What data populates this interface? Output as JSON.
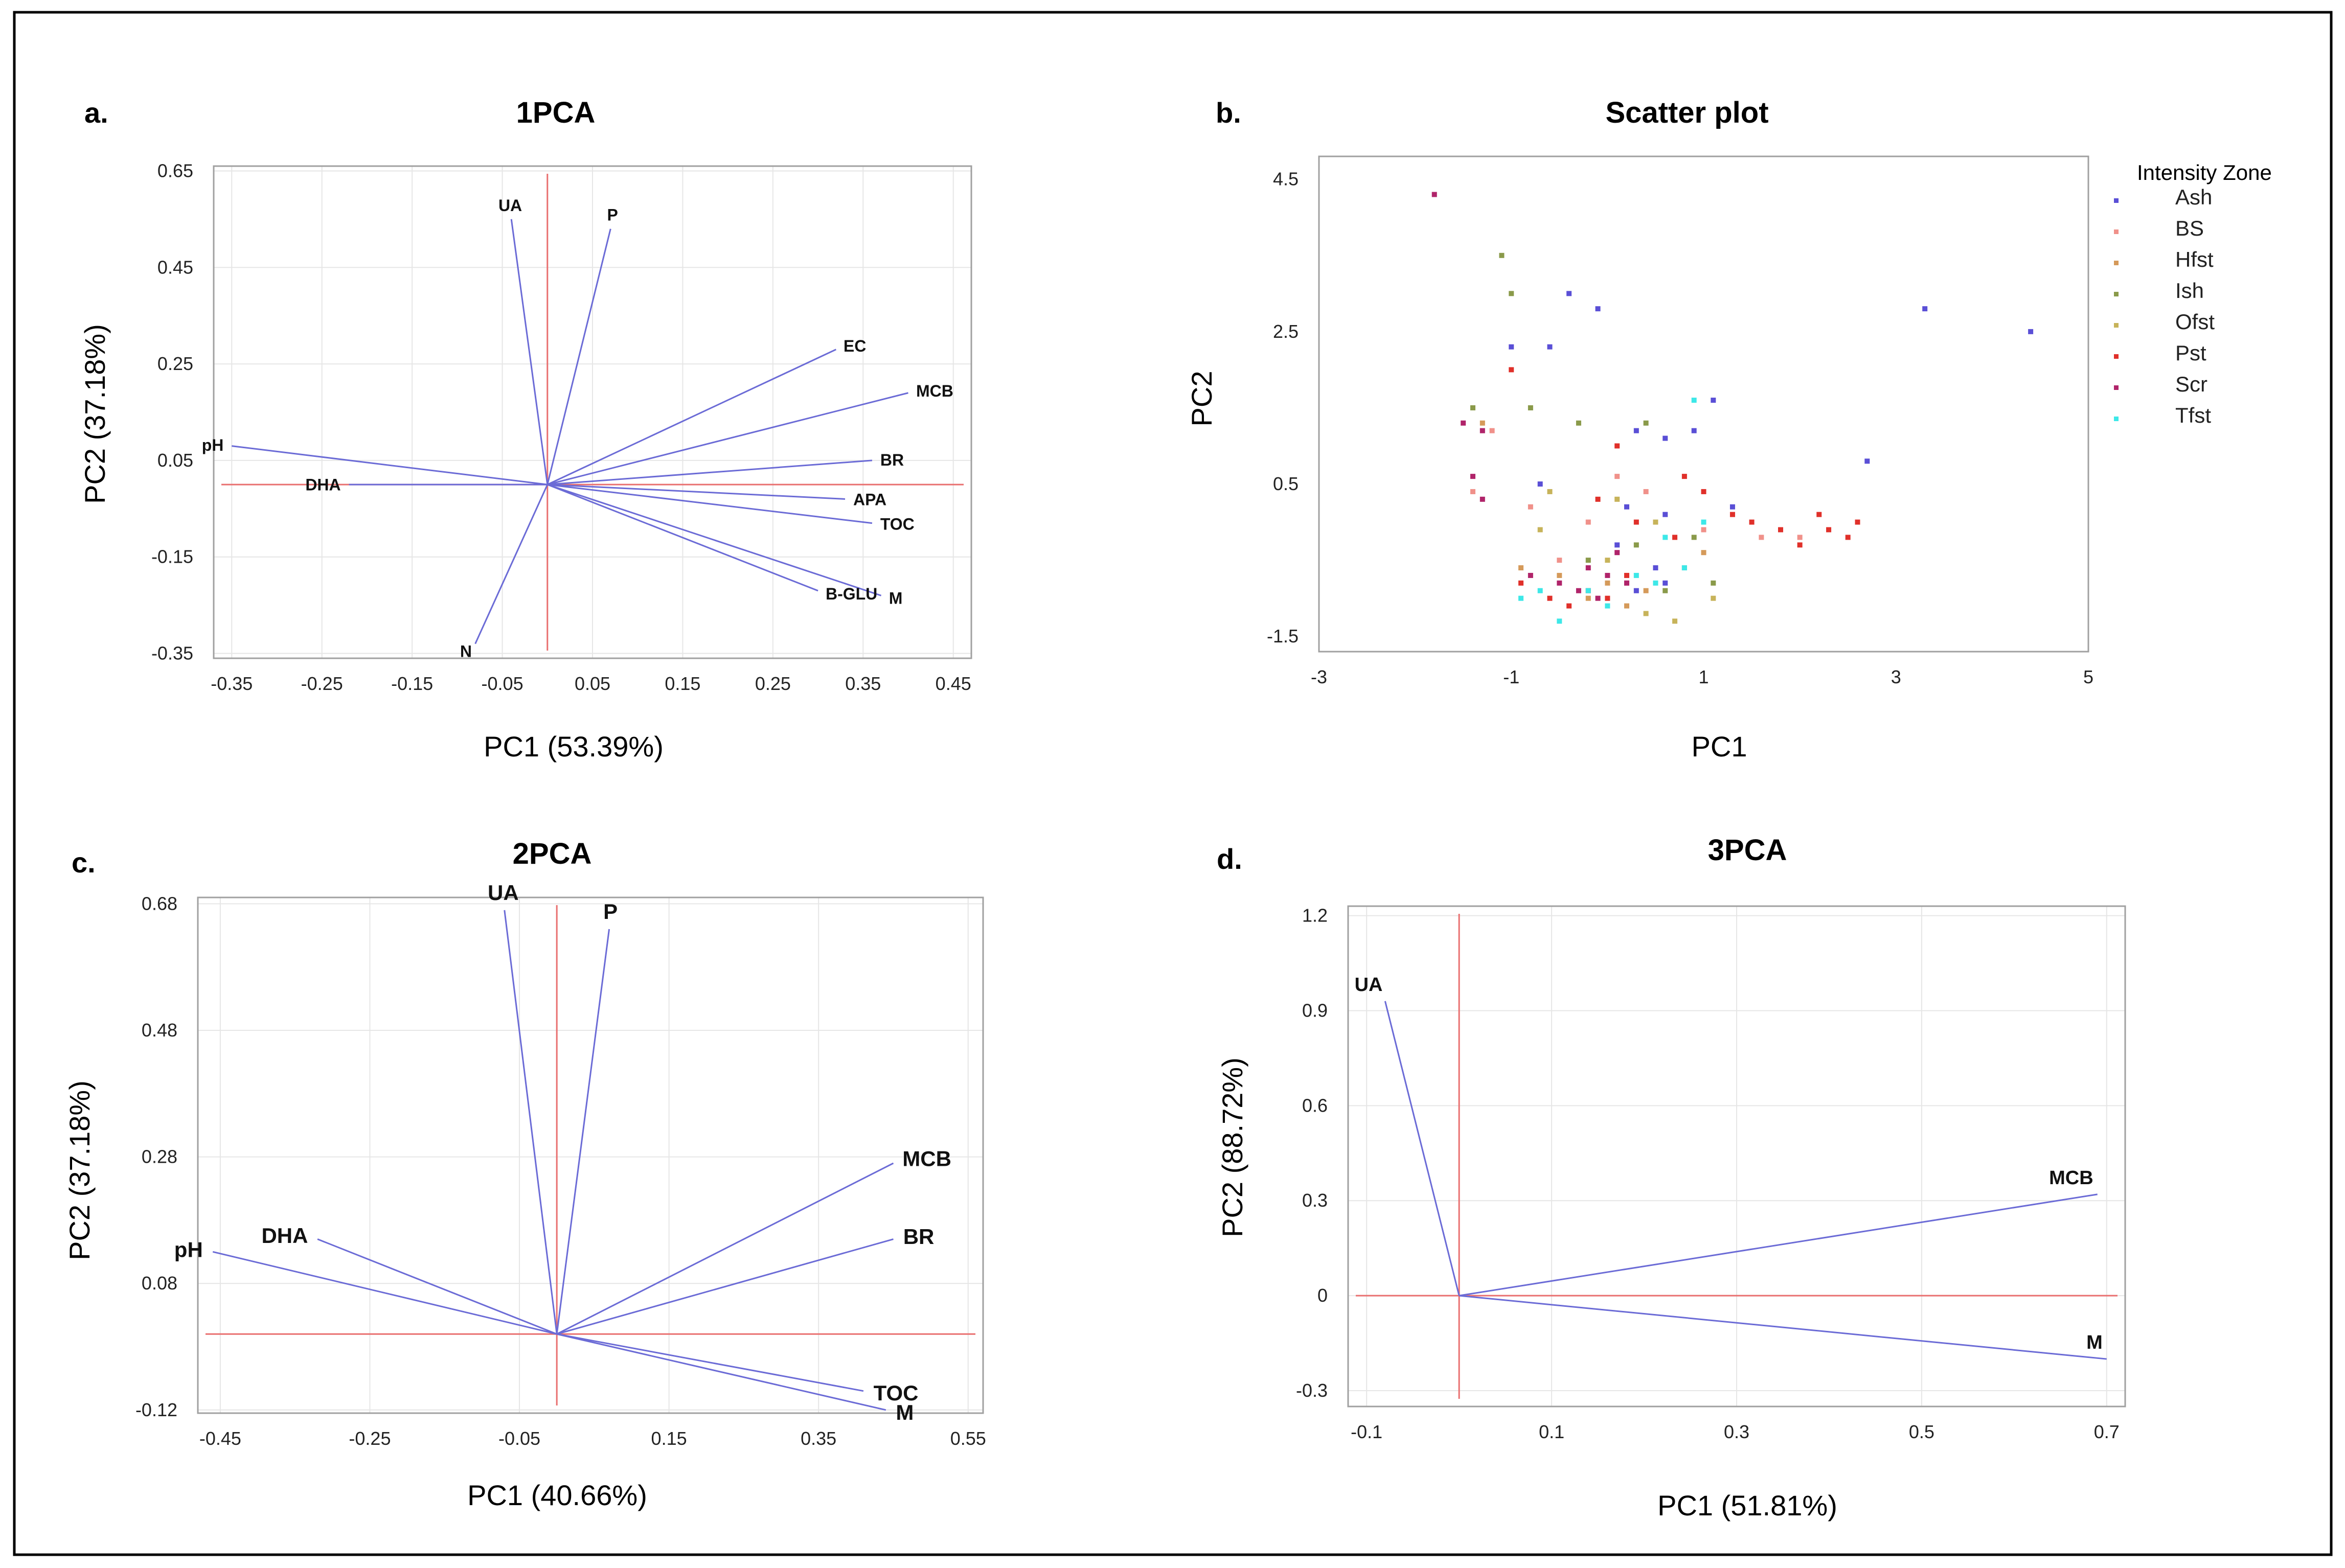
{
  "figure": {
    "colors": {
      "axis_line": "#e97070",
      "vector": "#6b6bd6",
      "frame": "#000000",
      "plot_border": "#a0a0a0",
      "grid": "#e6e6e6"
    }
  },
  "chart_data": [
    {
      "id": "a",
      "type": "biplot",
      "panel_label": "a.",
      "title": "1PCA",
      "xlabel": "PC1 (53.39%)",
      "ylabel": "PC2 (37.18%)",
      "xlim": [
        -0.37,
        0.47
      ],
      "ylim": [
        -0.36,
        0.66
      ],
      "xticks": [
        -0.35,
        -0.25,
        -0.15,
        -0.05,
        0.05,
        0.15,
        0.25,
        0.35,
        0.45
      ],
      "xtick_labels": [
        "-0.35",
        "-0.25",
        "-0.15",
        "-0.05",
        "0.05",
        "0.15",
        "0.25",
        "0.35",
        "0.45"
      ],
      "yticks": [
        -0.35,
        -0.15,
        0.05,
        0.25,
        0.45,
        0.65
      ],
      "ytick_labels": [
        "-0.35",
        "-0.15",
        "0.05",
        "0.25",
        "0.45",
        "0.65"
      ],
      "reference_lines": {
        "x": 0.0,
        "y": 0.0
      },
      "vectors": [
        {
          "label": "UA",
          "x": -0.04,
          "y": 0.55
        },
        {
          "label": "P",
          "x": 0.07,
          "y": 0.53
        },
        {
          "label": "EC",
          "x": 0.32,
          "y": 0.28
        },
        {
          "label": "MCB",
          "x": 0.4,
          "y": 0.19
        },
        {
          "label": "BR",
          "x": 0.36,
          "y": 0.05
        },
        {
          "label": "APA",
          "x": 0.33,
          "y": -0.03
        },
        {
          "label": "TOC",
          "x": 0.36,
          "y": -0.08
        },
        {
          "label": "M",
          "x": 0.37,
          "y": -0.23
        },
        {
          "label": "B-GLU",
          "x": 0.3,
          "y": -0.22
        },
        {
          "label": "N",
          "x": -0.08,
          "y": -0.33
        },
        {
          "label": "DHA",
          "x": -0.22,
          "y": 0.0
        },
        {
          "label": "pH",
          "x": -0.35,
          "y": 0.08
        }
      ]
    },
    {
      "id": "b",
      "type": "scatter",
      "panel_label": "b.",
      "title": "Scatter plot",
      "xlabel": "PC1",
      "ylabel": "PC2",
      "xlim": [
        -3,
        5
      ],
      "ylim": [
        -1.7,
        4.8
      ],
      "xticks": [
        -3,
        -1,
        1,
        3,
        5
      ],
      "xtick_labels": [
        "-3",
        "-1",
        "1",
        "3",
        "5"
      ],
      "yticks": [
        -1.5,
        0.5,
        2.5,
        4.5
      ],
      "ytick_labels": [
        "-1.5",
        "0.5",
        "2.5",
        "4.5"
      ],
      "legend_title": "Intensity Zone",
      "legend_position": "right",
      "series": [
        {
          "name": "Ash",
          "color": "#5a4fd6",
          "points": [
            [
              -0.4,
              3.0
            ],
            [
              -0.1,
              2.8
            ],
            [
              3.3,
              2.8
            ],
            [
              4.4,
              2.5
            ],
            [
              -1.0,
              2.3
            ],
            [
              -0.6,
              2.3
            ],
            [
              0.3,
              1.2
            ],
            [
              0.6,
              1.1
            ],
            [
              0.9,
              1.2
            ],
            [
              1.1,
              1.6
            ],
            [
              2.7,
              0.8
            ],
            [
              -0.7,
              0.5
            ],
            [
              0.2,
              0.2
            ],
            [
              0.6,
              0.1
            ],
            [
              1.3,
              0.2
            ],
            [
              0.1,
              -0.3
            ],
            [
              0.5,
              -0.6
            ],
            [
              0.6,
              -0.8
            ],
            [
              0.3,
              -0.9
            ]
          ]
        },
        {
          "name": "BS",
          "color": "#f0918a",
          "points": [
            [
              -1.2,
              1.2
            ],
            [
              -1.4,
              0.4
            ],
            [
              -0.8,
              0.2
            ],
            [
              -0.2,
              0.0
            ],
            [
              0.1,
              0.6
            ],
            [
              0.4,
              0.4
            ],
            [
              1.0,
              -0.1
            ],
            [
              1.6,
              -0.2
            ],
            [
              2.0,
              -0.2
            ],
            [
              -0.5,
              -0.5
            ],
            [
              0.2,
              -0.8
            ]
          ]
        },
        {
          "name": "Hfst",
          "color": "#d59a5a",
          "points": [
            [
              -1.3,
              1.3
            ],
            [
              -0.9,
              -0.6
            ],
            [
              -0.5,
              -0.7
            ],
            [
              0.0,
              -0.8
            ],
            [
              0.4,
              -0.9
            ],
            [
              0.8,
              -0.6
            ],
            [
              1.0,
              -0.4
            ],
            [
              0.2,
              -1.1
            ],
            [
              -0.2,
              -1.0
            ]
          ]
        },
        {
          "name": "Ish",
          "color": "#8a9a4a",
          "points": [
            [
              -1.1,
              3.5
            ],
            [
              -1.0,
              3.0
            ],
            [
              -1.4,
              1.5
            ],
            [
              -0.8,
              1.5
            ],
            [
              -0.3,
              1.3
            ],
            [
              0.4,
              1.3
            ],
            [
              0.9,
              -0.2
            ],
            [
              0.3,
              -0.3
            ],
            [
              -0.2,
              -0.5
            ],
            [
              0.6,
              -0.9
            ],
            [
              1.1,
              -0.8
            ]
          ]
        },
        {
          "name": "Ofst",
          "color": "#c7b35a",
          "points": [
            [
              -0.6,
              0.4
            ],
            [
              0.1,
              0.3
            ],
            [
              0.5,
              0.0
            ],
            [
              0.7,
              -1.3
            ],
            [
              0.4,
              -1.2
            ],
            [
              1.1,
              -1.0
            ],
            [
              -0.7,
              -0.1
            ],
            [
              0.0,
              -0.5
            ]
          ]
        },
        {
          "name": "Pst",
          "color": "#e0302a",
          "points": [
            [
              -1.0,
              2.0
            ],
            [
              0.1,
              1.0
            ],
            [
              0.8,
              0.6
            ],
            [
              1.0,
              0.4
            ],
            [
              1.3,
              0.1
            ],
            [
              1.5,
              0.0
            ],
            [
              1.8,
              -0.1
            ],
            [
              2.0,
              -0.3
            ],
            [
              2.2,
              0.1
            ],
            [
              2.5,
              -0.2
            ],
            [
              2.6,
              0.0
            ],
            [
              2.3,
              -0.1
            ],
            [
              -0.1,
              0.3
            ],
            [
              0.3,
              0.0
            ],
            [
              0.7,
              -0.2
            ],
            [
              -0.9,
              -0.8
            ],
            [
              -0.6,
              -1.0
            ],
            [
              -0.4,
              -1.1
            ],
            [
              -0.2,
              -0.9
            ],
            [
              0.0,
              -1.0
            ],
            [
              0.2,
              -0.7
            ]
          ]
        },
        {
          "name": "Scr",
          "color": "#b0246a",
          "points": [
            [
              -1.8,
              4.3
            ],
            [
              -1.5,
              1.3
            ],
            [
              -1.3,
              1.2
            ],
            [
              -1.4,
              0.6
            ],
            [
              -1.3,
              0.3
            ],
            [
              -0.8,
              -0.7
            ],
            [
              -0.5,
              -0.8
            ],
            [
              -0.3,
              -0.9
            ],
            [
              -0.1,
              -1.0
            ],
            [
              0.0,
              -0.7
            ],
            [
              0.2,
              -0.8
            ],
            [
              -0.2,
              -0.6
            ],
            [
              0.1,
              -0.4
            ]
          ]
        },
        {
          "name": "Tfst",
          "color": "#3de8e8",
          "points": [
            [
              0.9,
              1.6
            ],
            [
              -0.5,
              -1.3
            ],
            [
              -0.2,
              -0.9
            ],
            [
              0.0,
              -1.1
            ],
            [
              -0.7,
              -0.9
            ],
            [
              -0.9,
              -1.0
            ],
            [
              0.3,
              -0.7
            ],
            [
              0.5,
              -0.8
            ],
            [
              0.6,
              -0.2
            ],
            [
              0.8,
              -0.6
            ],
            [
              1.0,
              0.0
            ]
          ]
        }
      ]
    },
    {
      "id": "c",
      "type": "biplot",
      "panel_label": "c.",
      "title": "2PCA",
      "xlabel": "PC1 (40.66%)",
      "ylabel": "PC2 (37.18%)",
      "xlim": [
        -0.48,
        0.57
      ],
      "ylim": [
        -0.125,
        0.69
      ],
      "xticks": [
        -0.45,
        -0.25,
        -0.05,
        0.15,
        0.35,
        0.55
      ],
      "xtick_labels": [
        "-0.45",
        "-0.25",
        "-0.05",
        "0.15",
        "0.35",
        "0.55"
      ],
      "yticks": [
        -0.12,
        0.08,
        0.28,
        0.48,
        0.68
      ],
      "ytick_labels": [
        "-0.12",
        "0.08",
        "0.28",
        "0.48",
        "0.68"
      ],
      "reference_lines": {
        "x": 0.0,
        "y": 0.0
      },
      "vectors": [
        {
          "label": "UA",
          "x": -0.07,
          "y": 0.67
        },
        {
          "label": "P",
          "x": 0.07,
          "y": 0.64
        },
        {
          "label": "MCB",
          "x": 0.45,
          "y": 0.27
        },
        {
          "label": "BR",
          "x": 0.45,
          "y": 0.15
        },
        {
          "label": "TOC",
          "x": 0.41,
          "y": -0.09
        },
        {
          "label": "M",
          "x": 0.44,
          "y": -0.12
        },
        {
          "label": "DHA",
          "x": -0.32,
          "y": 0.15
        },
        {
          "label": "pH",
          "x": -0.46,
          "y": 0.13
        }
      ]
    },
    {
      "id": "d",
      "type": "biplot",
      "panel_label": "d.",
      "title": "3PCA",
      "xlabel": "PC1 (51.81%)",
      "ylabel": "PC2 (88.72%)",
      "xlim": [
        -0.12,
        0.72
      ],
      "ylim": [
        -0.35,
        1.23
      ],
      "xticks": [
        -0.1,
        0.1,
        0.3,
        0.5,
        0.7
      ],
      "xtick_labels": [
        "-0.1",
        "0.1",
        "0.3",
        "0.5",
        "0.7"
      ],
      "yticks": [
        -0.3,
        0.0,
        0.3,
        0.6,
        0.9,
        1.2
      ],
      "ytick_labels": [
        "-0.3",
        "0",
        "0.3",
        "0.6",
        "0.9",
        "1.2"
      ],
      "reference_lines": {
        "x": 0.0,
        "y": 0.0
      },
      "vectors": [
        {
          "label": "UA",
          "x": -0.08,
          "y": 0.93
        },
        {
          "label": "MCB",
          "x": 0.69,
          "y": 0.32
        },
        {
          "label": "M",
          "x": 0.7,
          "y": -0.2
        }
      ]
    }
  ]
}
